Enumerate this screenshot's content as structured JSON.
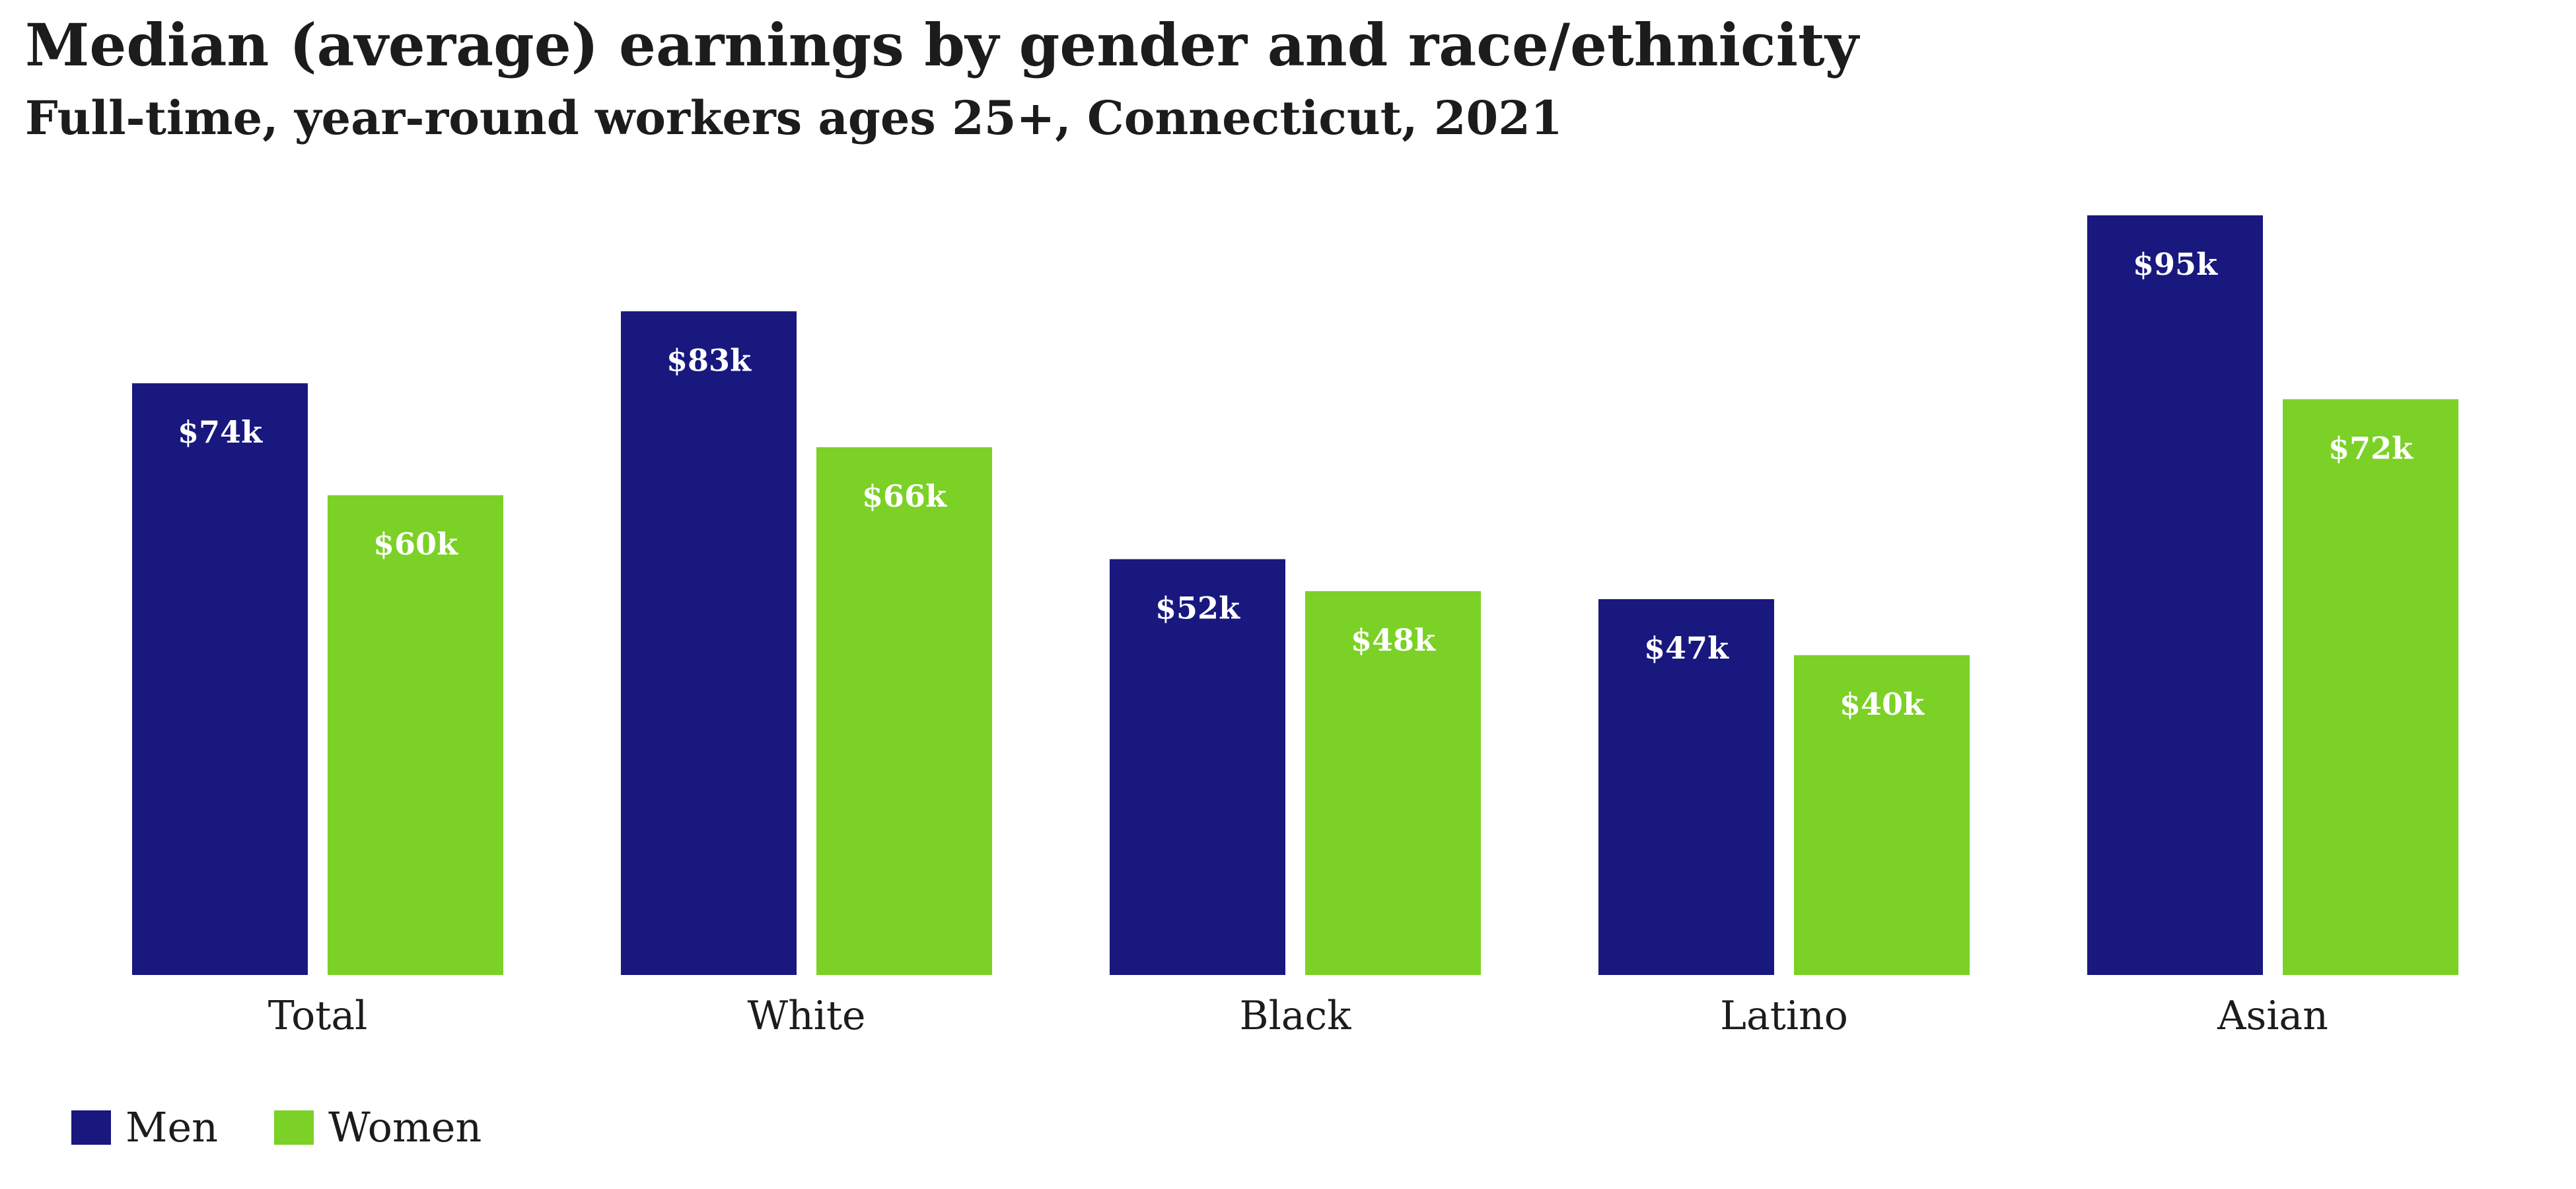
{
  "chart_data": {
    "type": "bar",
    "title": "Median (average) earnings by gender and race/ethnicity",
    "subtitle": "Full-time, year-round workers ages 25+, Connecticut, 2021",
    "categories": [
      "Total",
      "White",
      "Black",
      "Latino",
      "Asian"
    ],
    "series": [
      {
        "name": "Men",
        "color": "#18187f",
        "values": [
          74,
          83,
          52,
          47,
          95
        ],
        "labels": [
          "$74k",
          "$83k",
          "$52k",
          "$47k",
          "$95k"
        ]
      },
      {
        "name": "Women",
        "color": "#7bd126",
        "values": [
          60,
          66,
          48,
          40,
          72
        ],
        "labels": [
          "$60k",
          "$66k",
          "$48k",
          "$40k",
          "$72k"
        ]
      }
    ],
    "ylim": [
      0,
      95
    ],
    "grid": false,
    "legend_position": "bottom-left",
    "label_color": "#ffffff"
  }
}
